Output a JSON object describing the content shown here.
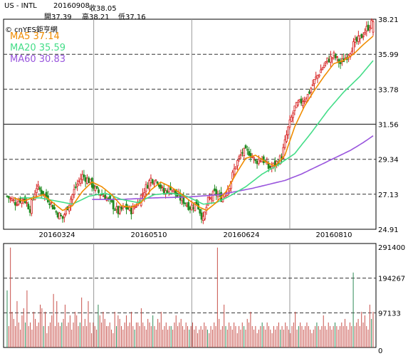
{
  "header": {
    "symbol": "US - INTL",
    "date": "20160908",
    "close_label": "收38.05",
    "open_label": "開37.39",
    "high_label": "高38.21",
    "low_label": "低37.16"
  },
  "brand": "© cnYES鉅亨網",
  "legend": {
    "ma5": "MA5 37.14",
    "ma20": "MA20 35.59",
    "ma60": "MA60 30.83"
  },
  "colors": {
    "up": "#d62020",
    "down": "#228b22",
    "ma5": "#f08c00",
    "ma20": "#44dd88",
    "ma60": "#9955dd",
    "volume": "#c8504a",
    "volume_down": "#2e8b57"
  },
  "chart_data": [
    {
      "type": "candlestick",
      "x_ticks": [
        "20160324",
        "20160510",
        "20160624",
        "20160810"
      ],
      "y_ticks": [
        24.91,
        27.13,
        29.34,
        31.56,
        33.78,
        35.99,
        38.21
      ],
      "ylim": [
        24.91,
        38.21
      ],
      "reference_line": 31.56,
      "grid": true,
      "last_candle": {
        "open": 37.39,
        "high": 38.21,
        "low": 37.16,
        "close": 38.05
      },
      "series": [
        {
          "name": "MA5",
          "value": 37.14
        },
        {
          "name": "MA20",
          "value": 35.59
        },
        {
          "name": "MA60",
          "value": 30.83
        }
      ],
      "price_path": [
        [
          0,
          27.0
        ],
        [
          5,
          26.6
        ],
        [
          10,
          26.9
        ],
        [
          14,
          26.2
        ],
        [
          18,
          27.6
        ],
        [
          22,
          27.2
        ],
        [
          26,
          26.7
        ],
        [
          30,
          26.0
        ],
        [
          34,
          25.6
        ],
        [
          38,
          26.6
        ],
        [
          42,
          27.6
        ],
        [
          46,
          28.3
        ],
        [
          50,
          28.0
        ],
        [
          55,
          27.3
        ],
        [
          60,
          27.0
        ],
        [
          64,
          26.5
        ],
        [
          68,
          26.0
        ],
        [
          72,
          26.3
        ],
        [
          76,
          26.1
        ],
        [
          80,
          26.6
        ],
        [
          84,
          27.4
        ],
        [
          88,
          28.1
        ],
        [
          92,
          28.0
        ],
        [
          96,
          27.2
        ],
        [
          100,
          27.6
        ],
        [
          104,
          27.0
        ],
        [
          108,
          26.7
        ],
        [
          112,
          26.3
        ],
        [
          116,
          26.6
        ],
        [
          120,
          25.5
        ],
        [
          123,
          26.7
        ],
        [
          127,
          27.2
        ],
        [
          131,
          26.9
        ],
        [
          136,
          27.7
        ],
        [
          140,
          29.0
        ],
        [
          144,
          29.8
        ],
        [
          148,
          29.8
        ],
        [
          152,
          29.2
        ],
        [
          156,
          29.4
        ],
        [
          160,
          28.8
        ],
        [
          164,
          29.0
        ],
        [
          168,
          29.5
        ],
        [
          172,
          31.3
        ],
        [
          176,
          32.6
        ],
        [
          180,
          33.0
        ],
        [
          184,
          33.4
        ],
        [
          188,
          34.3
        ],
        [
          192,
          35.0
        ],
        [
          196,
          35.6
        ],
        [
          200,
          35.9
        ],
        [
          204,
          35.4
        ],
        [
          208,
          35.9
        ],
        [
          212,
          36.6
        ],
        [
          216,
          37.0
        ],
        [
          220,
          37.6
        ],
        [
          224,
          38.05
        ]
      ],
      "ma5_path": [
        [
          4,
          26.9
        ],
        [
          10,
          26.7
        ],
        [
          16,
          26.9
        ],
        [
          22,
          27.1
        ],
        [
          28,
          26.6
        ],
        [
          34,
          26.1
        ],
        [
          40,
          26.4
        ],
        [
          46,
          27.3
        ],
        [
          52,
          27.9
        ],
        [
          58,
          27.6
        ],
        [
          64,
          27.1
        ],
        [
          70,
          26.4
        ],
        [
          76,
          26.3
        ],
        [
          82,
          26.6
        ],
        [
          88,
          27.4
        ],
        [
          94,
          27.9
        ],
        [
          100,
          27.6
        ],
        [
          106,
          27.2
        ],
        [
          112,
          26.7
        ],
        [
          118,
          26.3
        ],
        [
          122,
          26.1
        ],
        [
          128,
          26.6
        ],
        [
          134,
          27.3
        ],
        [
          140,
          28.4
        ],
        [
          146,
          29.4
        ],
        [
          152,
          29.6
        ],
        [
          158,
          29.2
        ],
        [
          164,
          28.9
        ],
        [
          170,
          29.6
        ],
        [
          176,
          31.4
        ],
        [
          182,
          32.7
        ],
        [
          188,
          33.7
        ],
        [
          194,
          34.6
        ],
        [
          200,
          35.4
        ],
        [
          206,
          35.6
        ],
        [
          212,
          36.0
        ],
        [
          218,
          36.6
        ],
        [
          224,
          37.14
        ]
      ],
      "ma20_path": [
        [
          8,
          26.9
        ],
        [
          20,
          26.9
        ],
        [
          30,
          26.7
        ],
        [
          40,
          26.5
        ],
        [
          50,
          27.0
        ],
        [
          60,
          27.2
        ],
        [
          70,
          26.8
        ],
        [
          80,
          26.6
        ],
        [
          90,
          27.1
        ],
        [
          100,
          27.2
        ],
        [
          110,
          27.0
        ],
        [
          120,
          26.5
        ],
        [
          128,
          26.6
        ],
        [
          136,
          27.0
        ],
        [
          146,
          27.6
        ],
        [
          156,
          28.4
        ],
        [
          166,
          29.0
        ],
        [
          176,
          29.7
        ],
        [
          186,
          31.0
        ],
        [
          196,
          32.4
        ],
        [
          206,
          33.6
        ],
        [
          216,
          34.6
        ],
        [
          224,
          35.59
        ]
      ],
      "ma60_path": [
        [
          52,
          26.8
        ],
        [
          70,
          26.8
        ],
        [
          90,
          26.9
        ],
        [
          110,
          26.95
        ],
        [
          130,
          27.1
        ],
        [
          150,
          27.5
        ],
        [
          170,
          28.0
        ],
        [
          180,
          28.4
        ],
        [
          190,
          28.9
        ],
        [
          200,
          29.4
        ],
        [
          210,
          29.9
        ],
        [
          218,
          30.4
        ],
        [
          224,
          30.83
        ]
      ]
    },
    {
      "type": "bar",
      "name": "volume",
      "y_ticks": [
        0,
        97133,
        194267,
        291400
      ],
      "ylim": [
        0,
        291400
      ],
      "grid": true,
      "values": [
        160000,
        60000,
        280000,
        100000,
        80000,
        60000,
        130000,
        70000,
        50000,
        90000,
        110000,
        70000,
        160000,
        60000,
        70000,
        50000,
        100000,
        80000,
        60000,
        70000,
        120000,
        110000,
        60000,
        100000,
        40000,
        60000,
        70000,
        90000,
        150000,
        60000,
        130000,
        70000,
        60000,
        70000,
        80000,
        120000,
        60000,
        70000,
        90000,
        50000,
        70000,
        100000,
        90000,
        60000,
        70000,
        140000,
        60000,
        80000,
        60000,
        130000,
        70000,
        40000,
        70000,
        60000,
        50000,
        120000,
        90000,
        70000,
        100000,
        80000,
        60000,
        60000,
        70000,
        50000,
        40000,
        100000,
        60000,
        90000,
        80000,
        60000,
        50000,
        70000,
        90000,
        60000,
        70000,
        100000,
        60000,
        50000,
        70000,
        70000,
        60000,
        110000,
        70000,
        60000,
        50000,
        80000,
        70000,
        60000,
        90000,
        60000,
        50000,
        80000,
        70000,
        100000,
        50000,
        60000,
        70000,
        50000,
        60000,
        60000,
        50000,
        70000,
        90000,
        60000,
        70000,
        80000,
        60000,
        50000,
        70000,
        60000,
        50000,
        60000,
        70000,
        50000,
        60000,
        40000,
        50000,
        60000,
        50000,
        70000,
        60000,
        50000,
        40000,
        60000,
        50000,
        70000,
        60000,
        280000,
        80000,
        50000,
        60000,
        120000,
        60000,
        50000,
        70000,
        60000,
        50000,
        70000,
        60000,
        40000,
        60000,
        50000,
        70000,
        60000,
        50000,
        80000,
        70000,
        100000,
        60000,
        50000,
        60000,
        40000,
        50000,
        60000,
        70000,
        60000,
        50000,
        70000,
        60000,
        50000,
        40000,
        60000,
        50000,
        60000,
        70000,
        50000,
        60000,
        50000,
        70000,
        60000,
        50000,
        40000,
        60000,
        70000,
        100000,
        50000,
        60000,
        70000,
        60000,
        50000,
        60000,
        70000,
        60000,
        50000,
        40000,
        50000,
        60000,
        70000,
        60000,
        50000,
        60000,
        90000,
        60000,
        50000,
        70000,
        60000,
        50000,
        60000,
        70000,
        60000,
        50000,
        60000,
        70000,
        60000,
        80000,
        60000,
        50000,
        70000,
        60000,
        210000,
        60000,
        70000,
        80000,
        60000,
        100000,
        70000,
        90000,
        60000,
        50000,
        120000,
        80000,
        100000
      ]
    }
  ]
}
